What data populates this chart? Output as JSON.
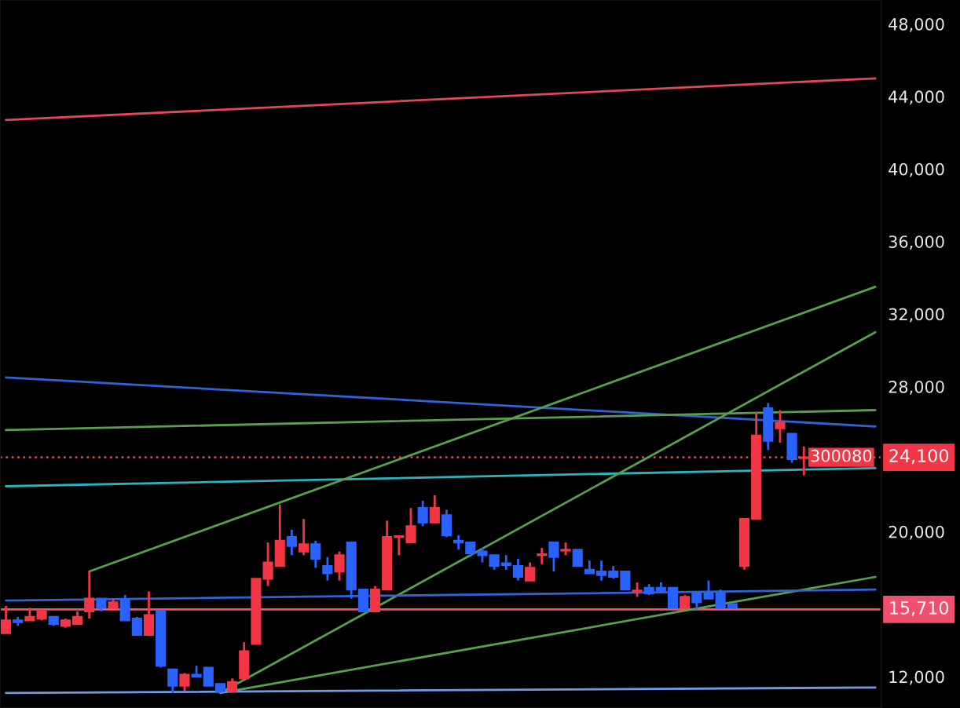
{
  "chart_data": {
    "type": "candlestick",
    "categories": [
      null,
      null,
      null,
      null,
      null,
      null,
      null,
      null,
      null,
      null,
      null,
      null,
      null,
      null,
      null,
      null,
      null,
      null,
      null,
      null,
      null,
      null,
      null,
      null,
      null,
      null,
      null,
      null,
      null,
      null,
      null,
      null,
      null,
      null,
      null,
      null,
      null,
      null,
      null,
      null,
      null,
      null,
      null,
      null,
      null,
      null,
      null,
      null,
      null,
      null,
      null,
      null,
      null,
      null,
      null,
      null,
      null,
      null,
      null,
      null,
      null,
      null,
      null,
      null,
      null,
      null,
      null,
      null,
      null,
      null,
      null,
      null,
      null,
      null
    ],
    "ohlc": [
      [
        14400,
        15900,
        14400,
        15100
      ],
      [
        15100,
        15300,
        14800,
        15000
      ],
      [
        15100,
        15800,
        15100,
        15300
      ],
      [
        15200,
        15600,
        15100,
        15600
      ],
      [
        15300,
        15300,
        14800,
        14900
      ],
      [
        14800,
        15200,
        14700,
        15100
      ],
      [
        14900,
        15600,
        14900,
        15300
      ],
      [
        15600,
        17800,
        15200,
        16300
      ],
      [
        16300,
        16300,
        15600,
        15800
      ],
      [
        15800,
        16300,
        15800,
        16100
      ],
      [
        16200,
        16500,
        15100,
        15100
      ],
      [
        15200,
        15300,
        14300,
        14300
      ],
      [
        14300,
        16700,
        14300,
        15400
      ],
      [
        15600,
        15600,
        12500,
        12600
      ],
      [
        12400,
        12400,
        11100,
        11500
      ],
      [
        11500,
        12200,
        11200,
        12100
      ],
      [
        12100,
        12600,
        12000,
        12000
      ],
      [
        12500,
        12500,
        11500,
        11500
      ],
      [
        11600,
        11600,
        11100,
        11200
      ],
      [
        11200,
        11900,
        11200,
        11700
      ],
      [
        11900,
        13900,
        11900,
        13400
      ],
      [
        13800,
        17400,
        13800,
        17400
      ],
      [
        17400,
        19400,
        17000,
        18300
      ],
      [
        18100,
        21500,
        18100,
        19500
      ],
      [
        19700,
        20100,
        18700,
        19200
      ],
      [
        18900,
        20700,
        18700,
        19300
      ],
      [
        19300,
        19500,
        18000,
        18500
      ],
      [
        18100,
        18600,
        17300,
        17700
      ],
      [
        17800,
        18900,
        17300,
        18700
      ],
      [
        19400,
        19400,
        16300,
        16800
      ],
      [
        16800,
        16800,
        15600,
        15600
      ],
      [
        15600,
        17000,
        15600,
        16800
      ],
      [
        16800,
        20600,
        16800,
        19700
      ],
      [
        19700,
        19800,
        18700,
        19750
      ],
      [
        19400,
        21300,
        19400,
        20300
      ],
      [
        21300,
        21700,
        20300,
        20500
      ],
      [
        20500,
        22000,
        20500,
        21300
      ],
      [
        20900,
        21200,
        19700,
        19800
      ],
      [
        19500,
        19800,
        19000,
        19400
      ],
      [
        19400,
        19400,
        18600,
        18800
      ],
      [
        18900,
        19100,
        18300,
        18700
      ],
      [
        18700,
        18700,
        17900,
        18100
      ],
      [
        18250,
        18700,
        17900,
        18150
      ],
      [
        18100,
        18500,
        17300,
        17500
      ],
      [
        17300,
        18300,
        17300,
        18000
      ],
      [
        18700,
        19100,
        18200,
        18750
      ],
      [
        19400,
        19400,
        17800,
        18600
      ],
      [
        18950,
        19400,
        18700,
        19000
      ],
      [
        19000,
        19000,
        18100,
        18100
      ],
      [
        17900,
        18400,
        17700,
        17700
      ],
      [
        17800,
        18400,
        17300,
        17600
      ],
      [
        17800,
        18100,
        17400,
        17500
      ],
      [
        17800,
        17800,
        16800,
        16800
      ],
      [
        16700,
        17200,
        16400,
        16750
      ],
      [
        16900,
        17100,
        16500,
        16600
      ],
      [
        16900,
        17200,
        16600,
        16750
      ],
      [
        16900,
        16900,
        15800,
        15800
      ],
      [
        15800,
        16500,
        15800,
        16400
      ],
      [
        16600,
        16600,
        15700,
        16100
      ],
      [
        16600,
        17300,
        16300,
        16300
      ],
      [
        16600,
        16800,
        15800,
        15800
      ],
      [
        16000,
        16000,
        15800,
        15800
      ],
      [
        18100,
        20700,
        17900,
        20700
      ],
      [
        20700,
        26600,
        20700,
        25300
      ],
      [
        26800,
        27100,
        24500,
        25000
      ],
      [
        25700,
        26700,
        24900,
        26000
      ],
      [
        25400,
        25400,
        23800,
        24000
      ],
      [
        24050,
        24700,
        23100,
        24100
      ],
      null,
      null,
      null,
      null,
      null,
      null
    ],
    "colors": [
      "#f23645",
      "#2962ff",
      "#f23645",
      "#f23645",
      "#2962ff",
      "#f23645",
      "#f23645",
      "#f23645",
      "#2962ff",
      "#f23645",
      "#2962ff",
      "#2962ff",
      "#f23645",
      "#2962ff",
      "#2962ff",
      "#f23645",
      "#2962ff",
      "#2962ff",
      "#2962ff",
      "#f23645",
      "#f23645",
      "#f23645",
      "#f23645",
      "#f23645",
      "#2962ff",
      "#f23645",
      "#2962ff",
      "#2962ff",
      "#f23645",
      "#2962ff",
      "#2962ff",
      "#f23645",
      "#f23645",
      "#f23645",
      "#f23645",
      "#2962ff",
      "#f23645",
      "#2962ff",
      "#2962ff",
      "#2962ff",
      "#2962ff",
      "#2962ff",
      "#2962ff",
      "#2962ff",
      "#f23645",
      "#f23645",
      "#2962ff",
      "#f23645",
      "#2962ff",
      "#2962ff",
      "#2962ff",
      "#2962ff",
      "#2962ff",
      "#f23645",
      "#2962ff",
      "#2962ff",
      "#2962ff",
      "#f23645",
      "#2962ff",
      "#2962ff",
      "#2962ff",
      "#2962ff",
      "#f23645",
      "#f23645",
      "#2962ff",
      "#f23645",
      "#2962ff",
      "#f23645",
      null,
      null,
      null,
      null,
      null,
      null
    ],
    "series": [
      {
        "type": "line",
        "color": "#e2475b",
        "values": [
          42700,
          null,
          null,
          null,
          null,
          null,
          null,
          null,
          null,
          null,
          null,
          null,
          null,
          null,
          null,
          null,
          null,
          null,
          null,
          null,
          null,
          null,
          null,
          null,
          null,
          null,
          null,
          null,
          null,
          null,
          null,
          null,
          null,
          null,
          null,
          null,
          null,
          null,
          null,
          null,
          null,
          null,
          null,
          null,
          null,
          null,
          null,
          null,
          null,
          null,
          null,
          null,
          null,
          null,
          null,
          null,
          null,
          null,
          null,
          null,
          null,
          null,
          null,
          null,
          null,
          null,
          null,
          null,
          null,
          null,
          null,
          null,
          null,
          45000
        ]
      },
      {
        "type": "line",
        "color": "#2f63d6",
        "values": [
          28500,
          null,
          null,
          null,
          null,
          null,
          null,
          null,
          null,
          null,
          null,
          null,
          null,
          null,
          null,
          null,
          null,
          null,
          null,
          null,
          null,
          null,
          null,
          null,
          null,
          null,
          null,
          null,
          null,
          null,
          null,
          null,
          null,
          null,
          null,
          null,
          null,
          null,
          null,
          null,
          null,
          null,
          null,
          null,
          null,
          null,
          null,
          null,
          null,
          null,
          null,
          null,
          null,
          null,
          null,
          null,
          null,
          null,
          null,
          null,
          null,
          null,
          null,
          null,
          null,
          null,
          null,
          null,
          null,
          null,
          null,
          null,
          null,
          25800
        ]
      },
      {
        "type": "line",
        "color": "#5a9e4f",
        "values": [
          25600,
          null,
          null,
          null,
          null,
          null,
          null,
          null,
          null,
          null,
          null,
          null,
          null,
          null,
          null,
          null,
          null,
          null,
          null,
          null,
          null,
          null,
          null,
          null,
          null,
          null,
          null,
          null,
          null,
          null,
          null,
          null,
          null,
          null,
          null,
          null,
          null,
          null,
          null,
          null,
          null,
          null,
          null,
          null,
          null,
          null,
          null,
          null,
          null,
          null,
          null,
          null,
          null,
          null,
          null,
          null,
          null,
          null,
          null,
          null,
          null,
          null,
          null,
          null,
          null,
          null,
          null,
          null,
          null,
          null,
          null,
          null,
          null,
          26700
        ]
      },
      {
        "type": "line",
        "color": "#2bb3c0",
        "values": [
          22500,
          null,
          null,
          null,
          null,
          null,
          null,
          null,
          null,
          null,
          null,
          null,
          null,
          null,
          null,
          null,
          null,
          null,
          null,
          null,
          null,
          null,
          null,
          null,
          null,
          null,
          null,
          null,
          null,
          null,
          null,
          null,
          null,
          null,
          null,
          null,
          null,
          null,
          null,
          null,
          null,
          null,
          null,
          null,
          null,
          null,
          null,
          null,
          null,
          null,
          null,
          null,
          null,
          null,
          null,
          null,
          null,
          null,
          null,
          null,
          null,
          null,
          null,
          null,
          null,
          null,
          null,
          null,
          null,
          null,
          null,
          null,
          null,
          23500
        ]
      },
      {
        "type": "line",
        "color": "#5a9e4f",
        "values": [
          null,
          null,
          null,
          null,
          null,
          null,
          null,
          17800,
          null,
          null,
          null,
          null,
          null,
          null,
          null,
          null,
          null,
          null,
          null,
          null,
          null,
          null,
          null,
          null,
          null,
          null,
          null,
          null,
          null,
          null,
          null,
          null,
          null,
          null,
          null,
          null,
          null,
          null,
          null,
          null,
          null,
          null,
          null,
          null,
          null,
          null,
          null,
          null,
          null,
          null,
          null,
          null,
          null,
          null,
          null,
          null,
          null,
          null,
          null,
          null,
          null,
          null,
          null,
          null,
          null,
          null,
          null,
          null,
          null,
          null,
          null,
          null,
          null,
          33500
        ]
      },
      {
        "type": "line",
        "color": "#5a9e4f",
        "values": [
          null,
          null,
          null,
          null,
          null,
          null,
          null,
          null,
          null,
          null,
          null,
          null,
          null,
          null,
          null,
          null,
          null,
          null,
          11100,
          null,
          null,
          null,
          null,
          null,
          null,
          null,
          null,
          null,
          null,
          null,
          null,
          null,
          null,
          null,
          null,
          null,
          null,
          null,
          null,
          null,
          null,
          null,
          null,
          null,
          null,
          null,
          null,
          null,
          null,
          null,
          null,
          null,
          null,
          null,
          null,
          null,
          null,
          null,
          null,
          null,
          null,
          null,
          null,
          null,
          null,
          null,
          null,
          null,
          null,
          null,
          null,
          null,
          null,
          31000
        ]
      },
      {
        "type": "line",
        "color": "#5a9e4f",
        "values": [
          null,
          null,
          null,
          null,
          null,
          null,
          null,
          null,
          null,
          null,
          null,
          null,
          null,
          null,
          null,
          null,
          null,
          null,
          11100,
          null,
          null,
          null,
          null,
          null,
          null,
          null,
          null,
          null,
          null,
          null,
          null,
          null,
          null,
          null,
          null,
          null,
          null,
          null,
          null,
          null,
          null,
          null,
          null,
          null,
          null,
          null,
          null,
          null,
          null,
          null,
          null,
          null,
          null,
          null,
          null,
          null,
          null,
          null,
          null,
          null,
          null,
          null,
          null,
          null,
          null,
          null,
          null,
          null,
          null,
          null,
          null,
          null,
          null,
          17500
        ]
      },
      {
        "type": "line",
        "color": "#2f63d6",
        "values": [
          16200,
          null,
          null,
          null,
          null,
          null,
          null,
          null,
          null,
          null,
          null,
          null,
          null,
          null,
          null,
          null,
          null,
          null,
          null,
          null,
          null,
          null,
          null,
          null,
          null,
          null,
          null,
          null,
          null,
          null,
          null,
          null,
          null,
          null,
          null,
          null,
          null,
          null,
          null,
          null,
          null,
          null,
          null,
          null,
          null,
          null,
          null,
          null,
          null,
          null,
          null,
          null,
          null,
          null,
          null,
          null,
          null,
          null,
          null,
          null,
          null,
          null,
          null,
          null,
          null,
          null,
          null,
          null,
          null,
          null,
          null,
          null,
          null,
          16800
        ]
      },
      {
        "type": "line",
        "color": "#6f9ae8",
        "values": [
          11100,
          null,
          null,
          null,
          null,
          null,
          null,
          null,
          null,
          null,
          null,
          null,
          null,
          null,
          null,
          null,
          null,
          null,
          null,
          null,
          null,
          null,
          null,
          null,
          null,
          null,
          null,
          null,
          null,
          null,
          null,
          null,
          null,
          null,
          null,
          null,
          null,
          null,
          null,
          null,
          null,
          null,
          null,
          null,
          null,
          null,
          null,
          null,
          null,
          null,
          null,
          null,
          null,
          null,
          null,
          null,
          null,
          null,
          null,
          null,
          null,
          null,
          null,
          null,
          null,
          null,
          null,
          null,
          null,
          null,
          null,
          null,
          null,
          11400
        ]
      }
    ],
    "ref_lines": [
      {
        "axis": "y",
        "value": 24100,
        "label": "24,100",
        "color": "#f23645",
        "line_style": "dotted"
      },
      {
        "axis": "y",
        "value": 15710,
        "label": "15,710",
        "color": "#f0506e",
        "line_style": "solid"
      }
    ],
    "annotations": [
      {
        "text": "300080",
        "y": 24100
      }
    ],
    "ylim": [
      10270,
      49320
    ],
    "yticks": [
      {
        "value": 12000,
        "label": "12,000"
      },
      {
        "value": 20000,
        "label": "20,000"
      },
      {
        "value": 28000,
        "label": "28,000"
      },
      {
        "value": 32000,
        "label": "32,000"
      },
      {
        "value": 36000,
        "label": "36,000"
      },
      {
        "value": 40000,
        "label": "40,000"
      },
      {
        "value": 44000,
        "label": "44,000"
      },
      {
        "value": 48000,
        "label": "48,000"
      }
    ],
    "tick_labels": "y"
  }
}
